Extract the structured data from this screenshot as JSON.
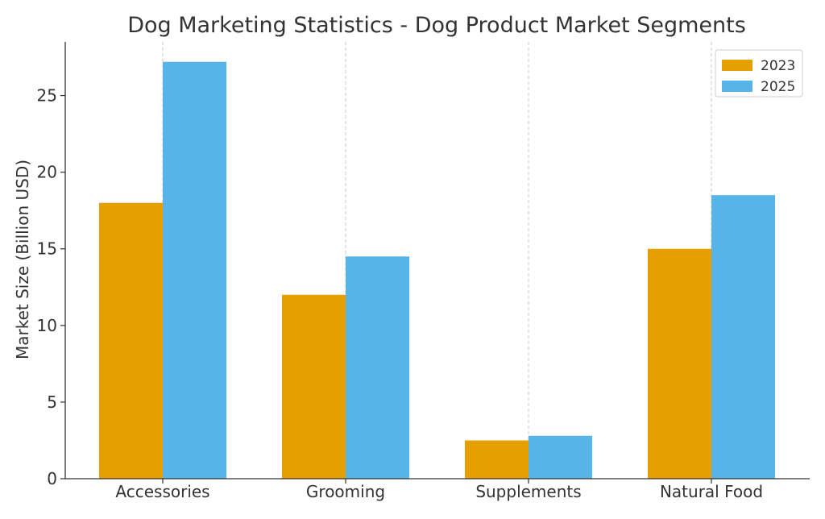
{
  "chart_data": {
    "type": "bar",
    "title": "Dog Marketing Statistics - Dog Product Market Segments",
    "xlabel": "",
    "ylabel": "Market Size (Billion USD)",
    "categories": [
      "Accessories",
      "Grooming",
      "Supplements",
      "Natural Food"
    ],
    "series": [
      {
        "name": "2023",
        "values": [
          18.0,
          12.0,
          2.5,
          15.0
        ],
        "color": "#E69F00"
      },
      {
        "name": "2025",
        "values": [
          27.2,
          14.5,
          2.8,
          18.5
        ],
        "color": "#56B4E9"
      }
    ],
    "ylim": [
      0,
      28.5
    ],
    "yticks": [
      0,
      5,
      10,
      15,
      20,
      25
    ],
    "grid": {
      "x": true,
      "y": false,
      "style": "dashed"
    },
    "legend_position": "top-right"
  }
}
